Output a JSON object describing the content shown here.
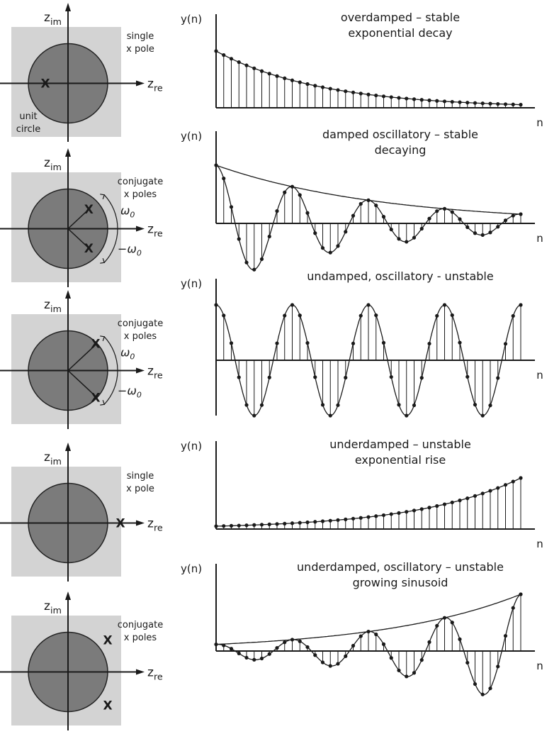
{
  "rows": [
    {
      "pole_label": [
        "single",
        "x pole"
      ],
      "extra_label": [
        "unit",
        "circle"
      ],
      "poles": "single-left",
      "title": [
        "overdamped – stable",
        "exponential decay"
      ],
      "ylabel": "y(n)",
      "xlabel": "n",
      "signal": {
        "type": "decay",
        "base": 0.93
      }
    },
    {
      "pole_label": [
        "conjugate",
        "x poles"
      ],
      "angle_label": "ω",
      "angle_sub": "0",
      "neg_angle_label": "−ω",
      "poles": "conjugate-inside",
      "title": [
        "damped oscillatory – stable",
        "decaying"
      ],
      "ylabel": "y(n)",
      "xlabel": "n",
      "signal": {
        "type": "damped",
        "r": 0.955,
        "w": 0.628
      }
    },
    {
      "pole_label": [
        "conjugate",
        "x poles"
      ],
      "angle_label": "ω",
      "angle_sub": "0",
      "neg_angle_label": "−ω",
      "poles": "conjugate-on",
      "title": [
        "undamped, oscillatory - unstable"
      ],
      "ylabel": "y(n)",
      "xlabel": "n",
      "signal": {
        "type": "undamped",
        "w": 0.628
      }
    },
    {
      "pole_label": [
        "single",
        "x pole"
      ],
      "poles": "single-right",
      "title": [
        "underdamped – unstable",
        "exponential rise"
      ],
      "ylabel": "y(n)",
      "xlabel": "n",
      "signal": {
        "type": "rise",
        "base": 1.075
      }
    },
    {
      "pole_label": [
        "conjugate",
        "x poles"
      ],
      "poles": "conjugate-outside",
      "title": [
        "underdamped, oscillatory – unstable",
        "growing sinusoid"
      ],
      "ylabel": "y(n)",
      "xlabel": "n",
      "signal": {
        "type": "growing",
        "r": 1.055,
        "w": 0.628
      }
    }
  ],
  "axis_labels": {
    "imag": "z",
    "imag_sub": "im",
    "real": "z",
    "real_sub": "re",
    "pole_mark": "X"
  }
}
